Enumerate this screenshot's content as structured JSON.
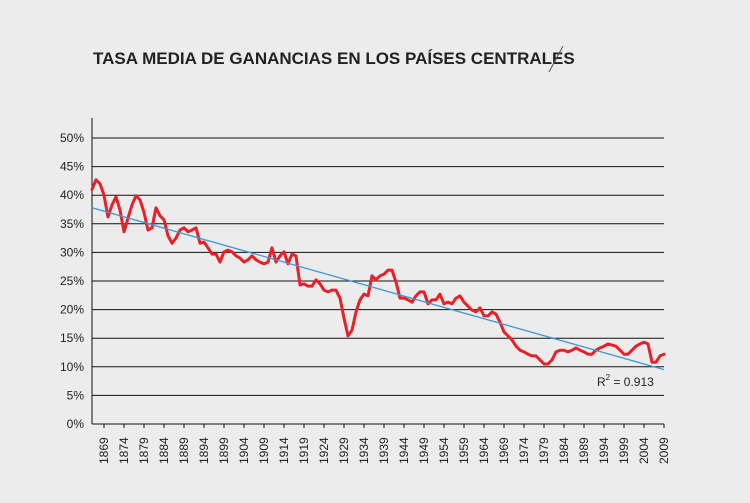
{
  "chart_data": {
    "type": "line",
    "title": "TASA MEDIA DE GANANCIAS EN LOS PAÍSES CENTRALES",
    "x": [
      1866,
      1867,
      1868,
      1869,
      1870,
      1871,
      1872,
      1873,
      1874,
      1875,
      1876,
      1877,
      1878,
      1879,
      1880,
      1881,
      1882,
      1883,
      1884,
      1885,
      1886,
      1887,
      1888,
      1889,
      1890,
      1891,
      1892,
      1893,
      1894,
      1895,
      1896,
      1897,
      1898,
      1899,
      1900,
      1901,
      1902,
      1903,
      1904,
      1905,
      1906,
      1907,
      1908,
      1909,
      1910,
      1911,
      1912,
      1913,
      1914,
      1915,
      1916,
      1917,
      1918,
      1919,
      1920,
      1921,
      1922,
      1923,
      1924,
      1925,
      1926,
      1927,
      1928,
      1929,
      1930,
      1931,
      1932,
      1933,
      1934,
      1935,
      1936,
      1937,
      1938,
      1939,
      1940,
      1941,
      1942,
      1943,
      1944,
      1945,
      1946,
      1947,
      1948,
      1949,
      1950,
      1951,
      1952,
      1953,
      1954,
      1955,
      1956,
      1957,
      1958,
      1959,
      1960,
      1961,
      1962,
      1963,
      1964,
      1965,
      1966,
      1967,
      1968,
      1969,
      1970,
      1971,
      1972,
      1973,
      1974,
      1975,
      1976,
      1977,
      1978,
      1979,
      1980,
      1981,
      1982,
      1983,
      1984,
      1985,
      1986,
      1987,
      1988,
      1989,
      1990,
      1991,
      1992,
      1993,
      1994,
      1995,
      1996,
      1997,
      1998,
      1999,
      2000,
      2001,
      2002,
      2003,
      2004,
      2005,
      2006,
      2007,
      2008,
      2009
    ],
    "series": [
      {
        "color": "#e8202a",
        "values": [
          41,
          42.7,
          42,
          40,
          36.2,
          38.3,
          39.7,
          37.4,
          33.6,
          36,
          38.3,
          39.9,
          39.2,
          37,
          33.9,
          34.3,
          37.8,
          36.4,
          35.7,
          32.9,
          31.6,
          32.5,
          33.9,
          34.3,
          33.6,
          33.9,
          34.3,
          31.6,
          31.8,
          30.8,
          29.7,
          29.7,
          28.3,
          30.1,
          30.4,
          30.1,
          29.4,
          29,
          28.3,
          28.7,
          29.4,
          28.7,
          28.3,
          28,
          28.3,
          30.8,
          28.3,
          29.4,
          30.1,
          28,
          29.7,
          29.4,
          24.3,
          24.5,
          24.1,
          24.1,
          25.2,
          24.5,
          23.4,
          23.1,
          23.4,
          23.4,
          22,
          18.5,
          15.4,
          16.4,
          19.6,
          21.7,
          22.7,
          22.4,
          25.9,
          25.2,
          25.9,
          26.2,
          26.9,
          26.9,
          24.8,
          22,
          22,
          21.7,
          21.3,
          22.4,
          23.1,
          23.1,
          21,
          21.7,
          21.7,
          22.7,
          21,
          21.3,
          21,
          22,
          22.4,
          21.3,
          20.6,
          19.9,
          19.6,
          20.3,
          18.9,
          18.9,
          19.6,
          19.2,
          17.8,
          16.1,
          15.4,
          14.7,
          13.6,
          12.9,
          12.6,
          12.2,
          11.9,
          11.9,
          11.2,
          10.5,
          10.5,
          11.2,
          12.6,
          12.9,
          12.9,
          12.6,
          12.9,
          13.3,
          12.9,
          12.6,
          12.2,
          12.2,
          12.9,
          13.3,
          13.6,
          14,
          13.8,
          13.6,
          12.9,
          12.2,
          12.2,
          12.9,
          13.6,
          14,
          14.3,
          14,
          10.8,
          10.8,
          11.9,
          12.2
        ]
      }
    ],
    "trendline": {
      "color": "#3a9ad9",
      "x": [
        1866,
        2009
      ],
      "values": [
        37.8,
        9.5
      ]
    },
    "annotation": {
      "base": "R",
      "sup": "2",
      "text": " = 0.913"
    },
    "xlim": [
      1866,
      2009
    ],
    "xticks": [
      1869,
      1874,
      1879,
      1884,
      1889,
      1894,
      1899,
      1904,
      1909,
      1914,
      1919,
      1924,
      1929,
      1934,
      1939,
      1944,
      1949,
      1954,
      1959,
      1964,
      1969,
      1974,
      1979,
      1984,
      1989,
      1994,
      1999,
      2004,
      2009
    ],
    "ylim": [
      0,
      50
    ],
    "yticks": [
      {
        "value": 0,
        "label": "0%"
      },
      {
        "value": 5,
        "label": "5%"
      },
      {
        "value": 10,
        "label": "10%"
      },
      {
        "value": 15,
        "label": "15%"
      },
      {
        "value": 20,
        "label": "20%"
      },
      {
        "value": 25,
        "label": "25%"
      },
      {
        "value": 30,
        "label": "30%"
      },
      {
        "value": 35,
        "label": "35%"
      },
      {
        "value": 40,
        "label": "40%"
      },
      {
        "value": 45,
        "label": "45%"
      },
      {
        "value": 50,
        "label": "50%"
      }
    ],
    "grid": true
  }
}
